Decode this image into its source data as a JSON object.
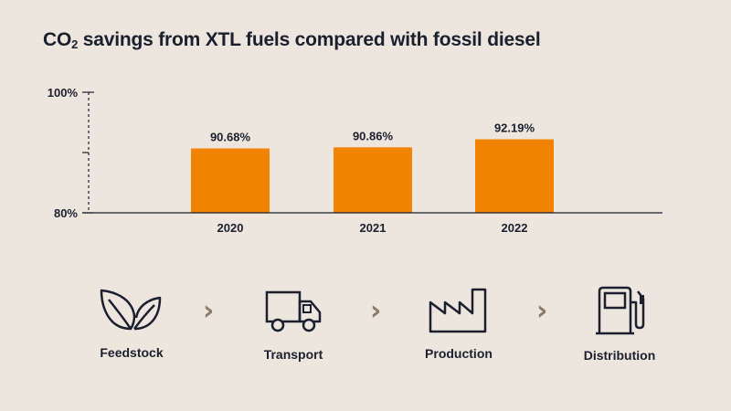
{
  "title": {
    "prefix": "CO",
    "subscript": "2",
    "suffix": " savings from XTL fuels compared with fossil diesel"
  },
  "chart_data": {
    "type": "bar",
    "categories": [
      "2020",
      "2021",
      "2022"
    ],
    "values": [
      90.68,
      90.86,
      92.19
    ],
    "data_labels": [
      "90.68%",
      "90.86%",
      "92.19%"
    ],
    "ylim": [
      80,
      100
    ],
    "yticks": [
      {
        "value": 80,
        "label": "80%"
      },
      {
        "value": 90,
        "label": ""
      },
      {
        "value": 100,
        "label": "100%"
      }
    ],
    "bar_color": "#f08300",
    "grid": false,
    "title": "",
    "xlabel": "",
    "ylabel": ""
  },
  "process": {
    "steps": [
      {
        "label": "Feedstock",
        "icon": "leaves-icon"
      },
      {
        "label": "Transport",
        "icon": "truck-icon"
      },
      {
        "label": "Production",
        "icon": "factory-icon"
      },
      {
        "label": "Distribution",
        "icon": "fuel-pump-icon"
      }
    ],
    "chevron": "›",
    "chevron_color": "#8c7a69"
  }
}
